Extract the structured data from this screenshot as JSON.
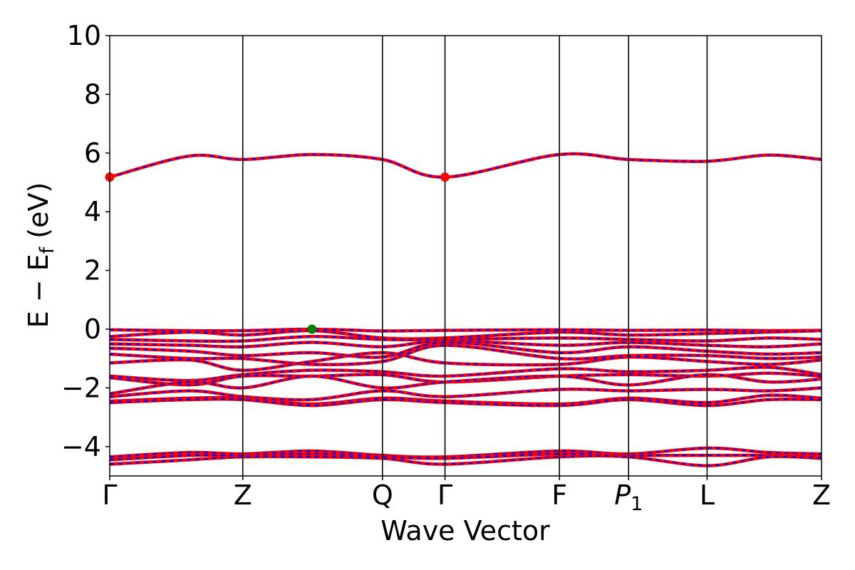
{
  "chart_data": {
    "type": "line",
    "title": "",
    "xlabel": "Wave Vector",
    "ylabel": "E − E_f (eV)",
    "ylim": [
      -5,
      10
    ],
    "yticks": [
      -4,
      -2,
      0,
      2,
      4,
      6,
      8,
      10
    ],
    "ytick_labels": [
      "−4",
      "−2",
      "0",
      "2",
      "4",
      "6",
      "8",
      "10"
    ],
    "grid": false,
    "legend": "none",
    "xlim": [
      0,
      5.35
    ],
    "kpoints": [
      {
        "label": "Γ",
        "x": 0.0
      },
      {
        "label": "Z",
        "x": 1.0
      },
      {
        "label": "Q",
        "x": 2.05
      },
      {
        "label": "Γ",
        "x": 2.52
      },
      {
        "label": "F",
        "x": 3.38
      },
      {
        "label": "P",
        "sub": "1",
        "x": 3.9
      },
      {
        "label": "L",
        "x": 4.49
      },
      {
        "label": "Z",
        "x": 5.35
      }
    ],
    "colors": {
      "spin_up": "#0000ff",
      "spin_down": "#ff0000",
      "cbm": "#ff0000",
      "vbm": "#008000",
      "axes": "#000000"
    },
    "markers": [
      {
        "name": "CBM",
        "x": 0.0,
        "y": 5.18,
        "color": "#ff0000"
      },
      {
        "name": "CBM",
        "x": 2.52,
        "y": 5.18,
        "color": "#ff0000"
      },
      {
        "name": "VBM",
        "x": 1.52,
        "y": 0.0,
        "color": "#008000"
      }
    ],
    "bands_x": [
      0.0,
      0.6,
      1.0,
      1.52,
      2.05,
      2.52,
      3.38,
      3.9,
      4.49,
      4.95,
      5.35
    ],
    "bands": [
      [
        5.18,
        5.9,
        5.78,
        5.95,
        5.78,
        5.18,
        5.95,
        5.78,
        5.72,
        5.93,
        5.78
      ],
      [
        -0.02,
        -0.05,
        -0.05,
        0.0,
        -0.06,
        -0.04,
        -0.02,
        -0.04,
        -0.03,
        -0.05,
        -0.04
      ],
      [
        -0.25,
        -0.1,
        -0.2,
        -0.05,
        -0.3,
        -0.3,
        -0.1,
        -0.2,
        -0.15,
        -0.1,
        -0.05
      ],
      [
        -0.35,
        -0.4,
        -0.4,
        -0.25,
        -0.35,
        -0.35,
        -0.3,
        -0.35,
        -0.4,
        -0.3,
        -0.35
      ],
      [
        -0.5,
        -0.55,
        -0.6,
        -0.45,
        -0.6,
        -0.4,
        -0.55,
        -0.45,
        -0.55,
        -0.6,
        -0.5
      ],
      [
        -0.65,
        -0.75,
        -0.9,
        -0.8,
        -0.95,
        -0.45,
        -0.8,
        -0.6,
        -0.75,
        -0.85,
        -0.8
      ],
      [
        -0.85,
        -1.0,
        -1.0,
        -1.2,
        -1.1,
        -0.55,
        -1.0,
        -0.9,
        -0.9,
        -1.0,
        -0.95
      ],
      [
        -1.15,
        -1.05,
        -1.4,
        -1.1,
        -0.8,
        -1.15,
        -1.2,
        -0.95,
        -1.1,
        -1.2,
        -1.05
      ],
      [
        -1.6,
        -1.75,
        -1.55,
        -1.4,
        -1.45,
        -1.6,
        -1.35,
        -1.45,
        -1.4,
        -1.3,
        -1.55
      ],
      [
        -1.65,
        -1.9,
        -1.6,
        -1.6,
        -1.55,
        -1.8,
        -1.6,
        -1.55,
        -1.6,
        -1.5,
        -1.6
      ],
      [
        -2.2,
        -1.8,
        -2.0,
        -1.6,
        -2.0,
        -1.8,
        -1.6,
        -1.9,
        -1.55,
        -1.8,
        -1.7
      ],
      [
        -2.3,
        -2.1,
        -2.3,
        -2.4,
        -2.1,
        -2.3,
        -2.05,
        -2.1,
        -2.05,
        -2.1,
        -2.0
      ],
      [
        -2.45,
        -2.35,
        -2.35,
        -2.55,
        -2.35,
        -2.45,
        -2.55,
        -2.35,
        -2.5,
        -2.25,
        -2.35
      ],
      [
        -2.5,
        -2.4,
        -2.4,
        -2.6,
        -2.4,
        -2.5,
        -2.6,
        -2.4,
        -2.6,
        -2.4,
        -2.4
      ],
      [
        -4.35,
        -4.2,
        -4.25,
        -4.15,
        -4.3,
        -4.35,
        -4.15,
        -4.25,
        -4.05,
        -4.2,
        -4.25
      ],
      [
        -4.45,
        -4.3,
        -4.3,
        -4.25,
        -4.35,
        -4.4,
        -4.25,
        -4.3,
        -4.3,
        -4.3,
        -4.35
      ],
      [
        -4.6,
        -4.45,
        -4.35,
        -4.35,
        -4.4,
        -4.6,
        -4.35,
        -4.35,
        -4.65,
        -4.35,
        -4.4
      ]
    ]
  }
}
